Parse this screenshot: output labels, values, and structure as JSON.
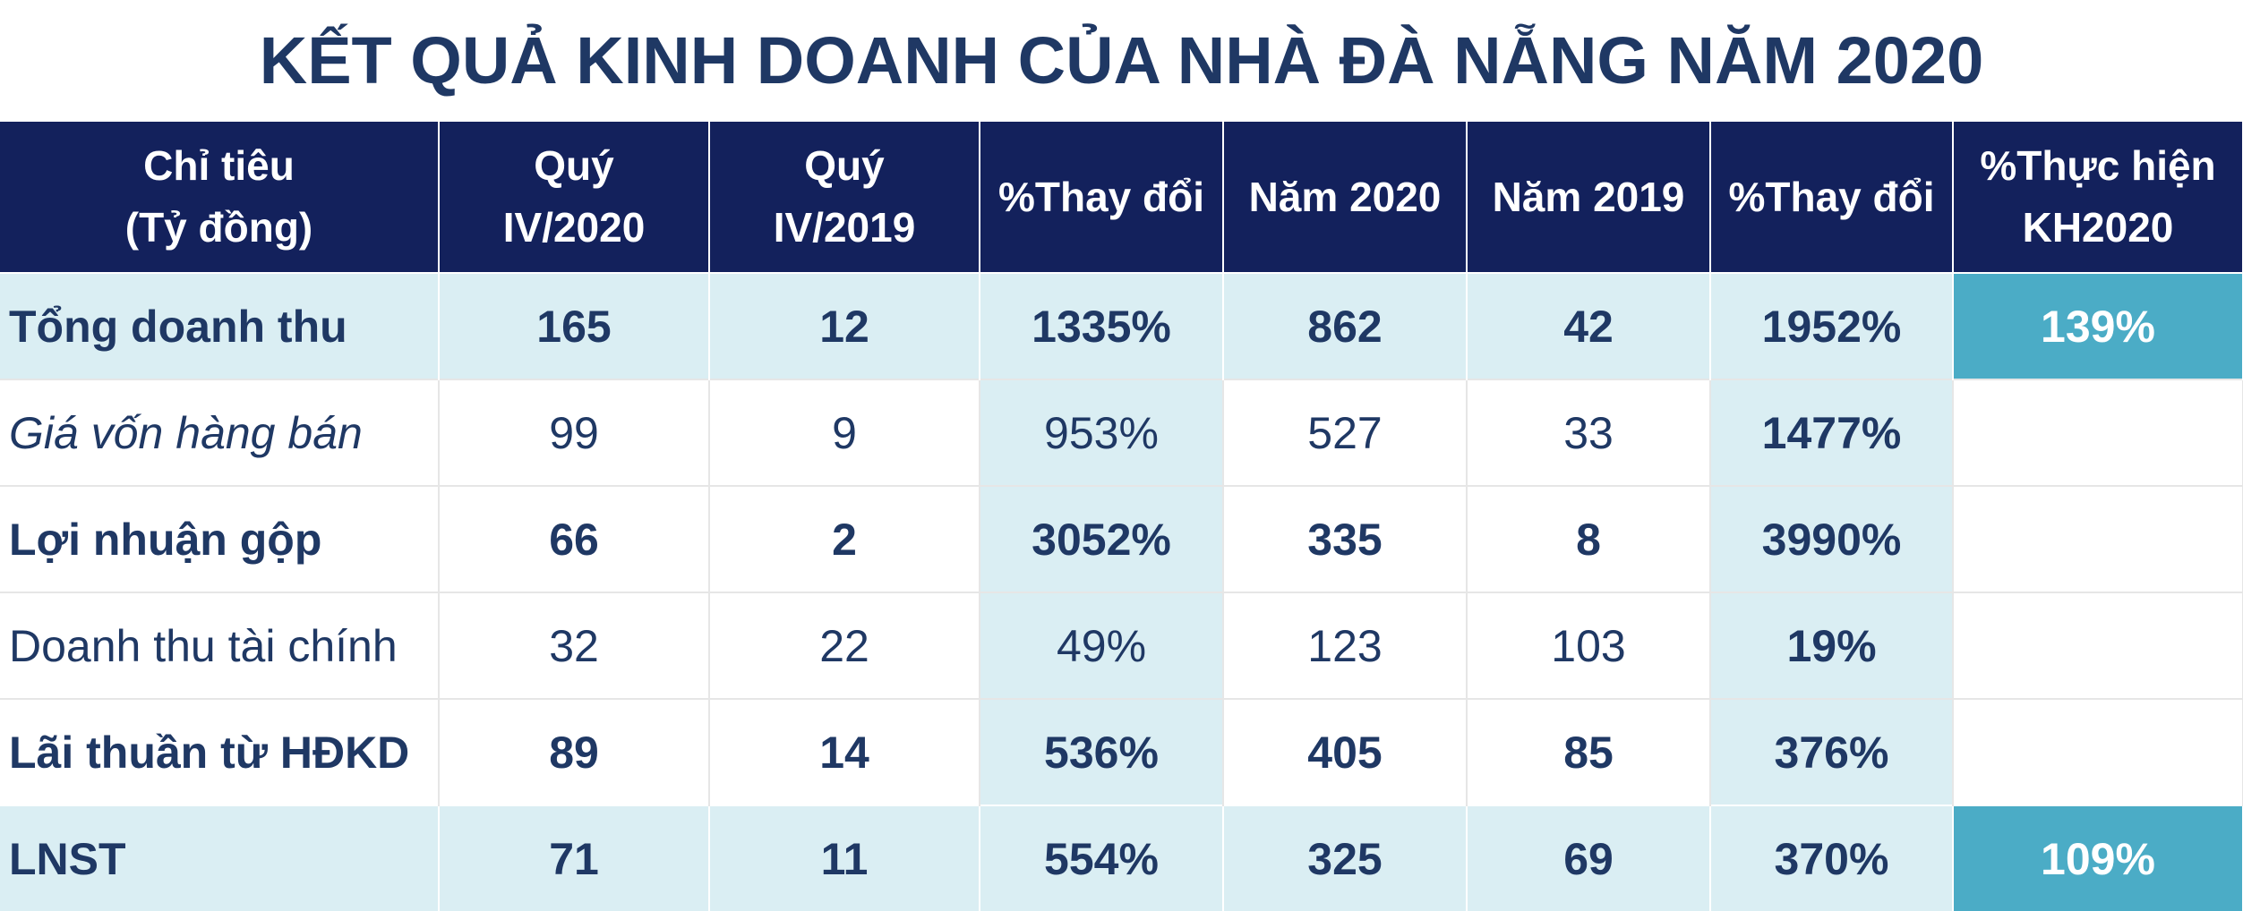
{
  "title": "KẾT QUẢ KINH DOANH CỦA NHÀ ĐÀ NẴNG NĂM 2020",
  "table": {
    "header": [
      [
        "Chỉ tiêu",
        "(Tỷ đồng)"
      ],
      [
        "Quý",
        "IV/2020"
      ],
      [
        "Quý",
        "IV/2019"
      ],
      [
        "%Thay đổi"
      ],
      [
        "Năm 2020"
      ],
      [
        "Năm 2019"
      ],
      [
        "%Thay đổi"
      ],
      [
        "%Thực hiện",
        "KH2020"
      ]
    ],
    "rows": [
      [
        "Tổng doanh thu",
        "165",
        "12",
        "1335%",
        "862",
        "42",
        "1952%",
        "139%"
      ],
      [
        "Giá vốn hàng bán",
        "99",
        "9",
        "953%",
        "527",
        "33",
        "1477%"
      ],
      [
        "Lợi nhuận gộp",
        "66",
        "2",
        "3052%",
        "335",
        "8",
        "3990%"
      ],
      [
        "Doanh thu tài chính",
        "32",
        "22",
        "49%",
        "123",
        "103",
        "19%"
      ],
      [
        "Lãi thuần từ HĐKD",
        "89",
        "14",
        "536%",
        "405",
        "85",
        "376%"
      ],
      [
        "LNST",
        "71",
        "11",
        "554%",
        "325",
        "69",
        "370%",
        "109%"
      ]
    ]
  }
}
